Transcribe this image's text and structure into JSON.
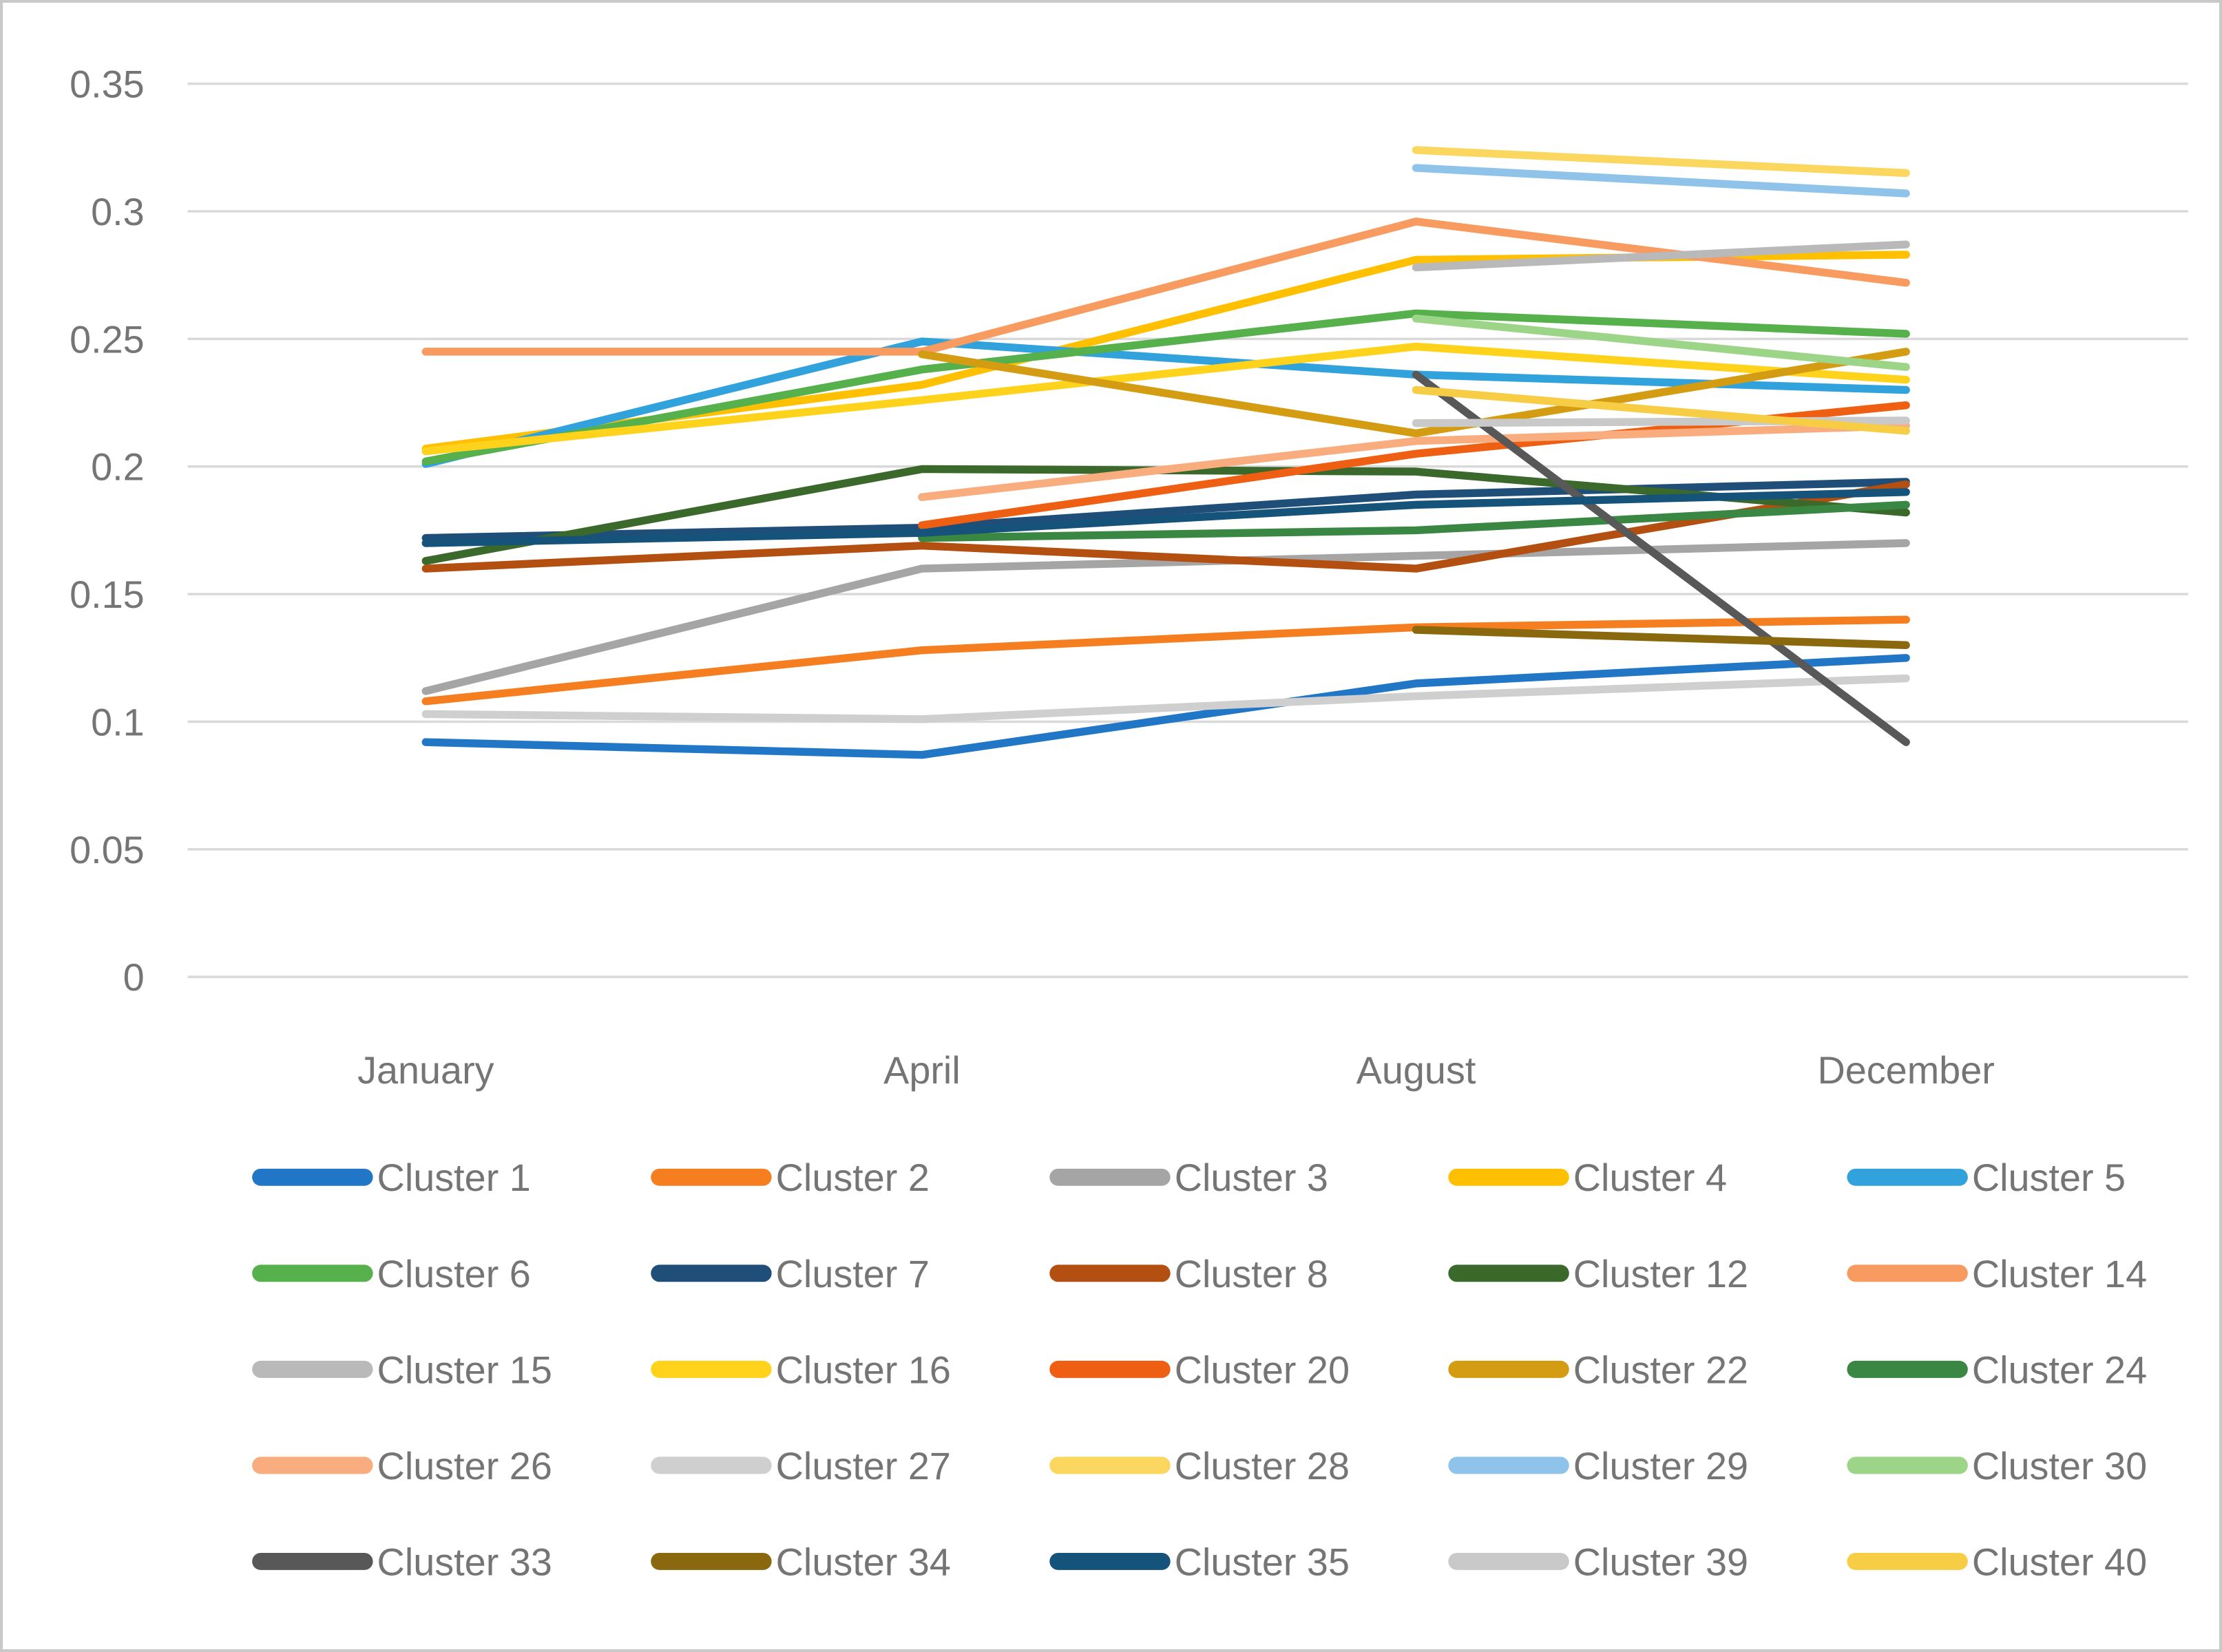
{
  "chart_data": {
    "type": "line",
    "title": "",
    "xlabel": "",
    "ylabel": "",
    "categories": [
      "January",
      "April",
      "August",
      "December"
    ],
    "y_ticks": [
      0.35,
      0.3,
      0.25,
      0.2,
      0.15,
      0.1,
      0.05,
      0
    ],
    "y_tick_labels": [
      "0.35",
      "0.3",
      "0.25",
      "0.2",
      "0.15",
      "0.1",
      "0.05",
      "0"
    ],
    "ylim": [
      0,
      0.35
    ],
    "grid": true,
    "legend_position": "bottom",
    "series": [
      {
        "name": "Cluster 1",
        "color": "#2176C5",
        "values": [
          0.092,
          0.087,
          0.115,
          0.125
        ]
      },
      {
        "name": "Cluster 2",
        "color": "#F57E20",
        "values": [
          0.108,
          0.128,
          0.137,
          0.14
        ]
      },
      {
        "name": "Cluster 3",
        "color": "#A5A5A5",
        "values": [
          0.112,
          0.16,
          0.165,
          0.17
        ]
      },
      {
        "name": "Cluster 4",
        "color": "#FFC002",
        "values": [
          0.207,
          0.232,
          0.281,
          0.283
        ]
      },
      {
        "name": "Cluster 5",
        "color": "#31A2DB",
        "values": [
          0.201,
          0.249,
          0.236,
          0.23
        ]
      },
      {
        "name": "Cluster 6",
        "color": "#56B14C",
        "values": [
          0.202,
          0.238,
          0.26,
          0.252
        ]
      },
      {
        "name": "Cluster 7",
        "color": "#1F4E79",
        "values": [
          0.172,
          0.176,
          0.189,
          0.194
        ]
      },
      {
        "name": "Cluster 8",
        "color": "#B34F10",
        "values": [
          0.16,
          0.169,
          0.16,
          0.193
        ]
      },
      {
        "name": "Cluster 12",
        "color": "#3B682B",
        "values": [
          0.163,
          0.199,
          0.198,
          0.182
        ]
      },
      {
        "name": "Cluster 14",
        "color": "#F89B60",
        "values": [
          0.245,
          0.245,
          0.296,
          0.272
        ]
      },
      {
        "name": "Cluster 15",
        "color": "#B9B9B9",
        "values": [
          null,
          null,
          0.278,
          0.287
        ]
      },
      {
        "name": "Cluster 16",
        "color": "#FFD21C",
        "values": [
          0.206,
          0.226,
          0.247,
          0.234
        ]
      },
      {
        "name": "Cluster 20",
        "color": "#EF5F13",
        "values": [
          null,
          0.177,
          0.205,
          0.224
        ]
      },
      {
        "name": "Cluster 22",
        "color": "#D49C12",
        "values": [
          null,
          0.244,
          0.213,
          0.245
        ]
      },
      {
        "name": "Cluster 24",
        "color": "#398742",
        "values": [
          null,
          0.172,
          0.175,
          0.185
        ]
      },
      {
        "name": "Cluster 26",
        "color": "#F9AC7D",
        "values": [
          null,
          0.188,
          0.21,
          0.216
        ]
      },
      {
        "name": "Cluster 27",
        "color": "#CFCFCF",
        "values": [
          0.103,
          0.101,
          0.11,
          0.117
        ]
      },
      {
        "name": "Cluster 28",
        "color": "#FBD75F",
        "values": [
          null,
          null,
          0.324,
          0.315
        ]
      },
      {
        "name": "Cluster 29",
        "color": "#90C3E9",
        "values": [
          null,
          null,
          0.317,
          0.307
        ]
      },
      {
        "name": "Cluster 30",
        "color": "#9CD488",
        "values": [
          null,
          null,
          0.258,
          0.239
        ]
      },
      {
        "name": "Cluster 33",
        "color": "#585858",
        "values": [
          null,
          null,
          0.236,
          0.092
        ]
      },
      {
        "name": "Cluster 34",
        "color": "#8A690E",
        "values": [
          null,
          null,
          0.136,
          0.13
        ]
      },
      {
        "name": "Cluster 35",
        "color": "#15537B",
        "values": [
          0.17,
          0.174,
          0.185,
          0.19
        ]
      },
      {
        "name": "Cluster 39",
        "color": "#C9C9C9",
        "values": [
          null,
          null,
          0.217,
          0.218
        ]
      },
      {
        "name": "Cluster 40",
        "color": "#F8CD46",
        "values": [
          null,
          null,
          0.23,
          0.214
        ]
      }
    ]
  }
}
